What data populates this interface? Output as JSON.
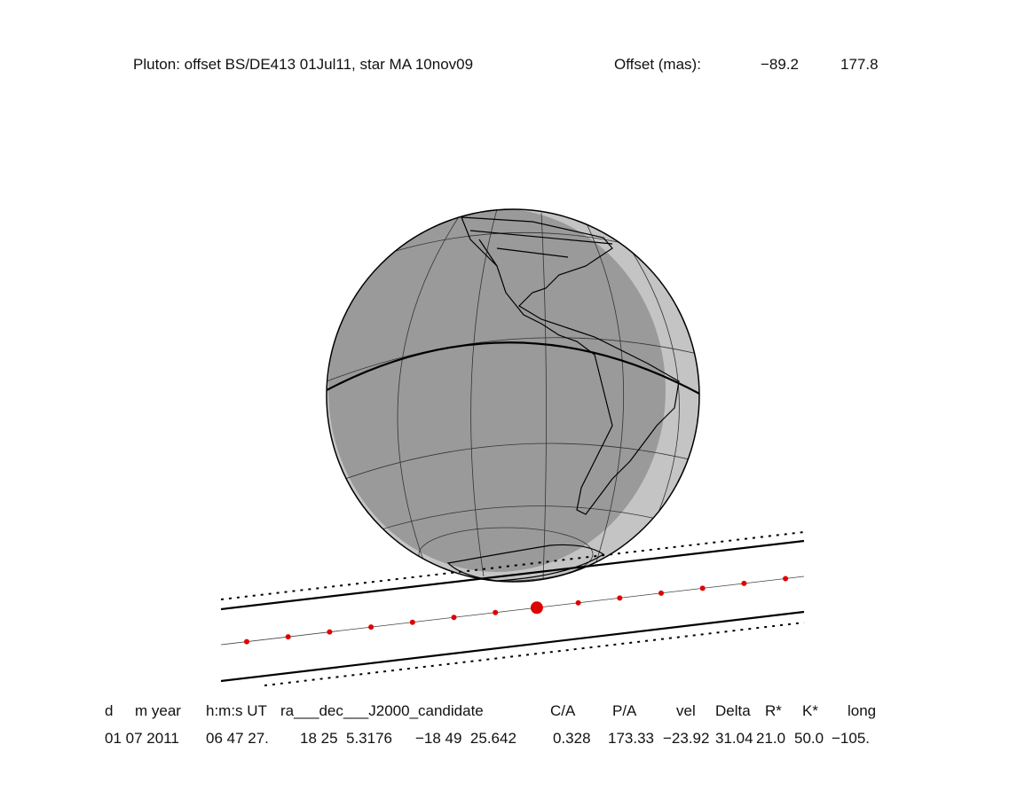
{
  "title": {
    "text": "Pluton: offset BS/DE413 01Jul11, star MA 10nov09",
    "offset_label": "Offset (mas):",
    "offset_values": [
      "−89.2",
      "177.8"
    ]
  },
  "table": {
    "headers": [
      "d",
      "m year",
      "h:m:s UT",
      "ra___dec___J2000_candidate",
      "C/A",
      "P/A",
      "vel",
      "Delta",
      "R*",
      "K*",
      "long"
    ],
    "row": [
      "01 07 2011",
      "06 47 27.",
      "18 25  5.3176",
      "−18 49  25.642",
      "0.328",
      "173.33",
      "−23.92",
      "31.04",
      "21.0",
      "50.0",
      "−105."
    ]
  }
}
